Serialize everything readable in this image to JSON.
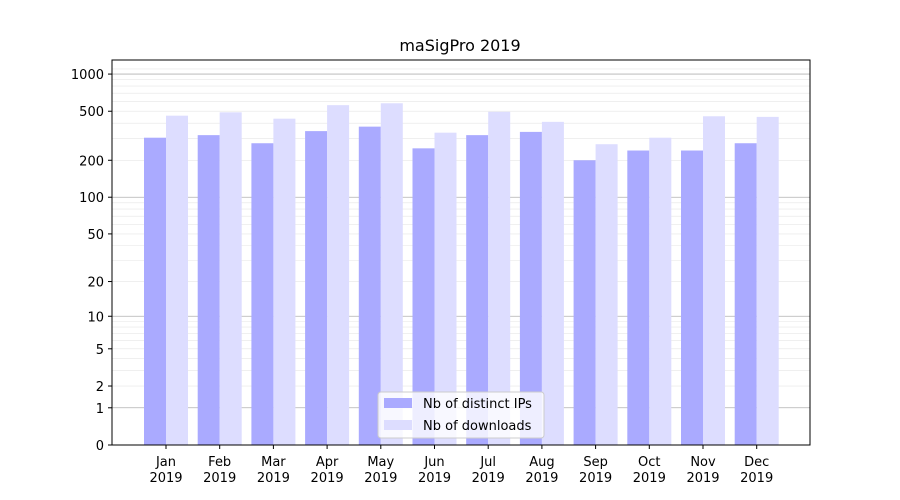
{
  "chart_data": {
    "type": "bar",
    "title": "maSigPro 2019",
    "xlabel": "",
    "ylabel": "",
    "yscale": "symlog",
    "ylim": [
      0,
      1300
    ],
    "grid": true,
    "legend_position": "bottom-center",
    "categories": [
      [
        "Jan",
        "2019"
      ],
      [
        "Feb",
        "2019"
      ],
      [
        "Mar",
        "2019"
      ],
      [
        "Apr",
        "2019"
      ],
      [
        "May",
        "2019"
      ],
      [
        "Jun",
        "2019"
      ],
      [
        "Jul",
        "2019"
      ],
      [
        "Aug",
        "2019"
      ],
      [
        "Sep",
        "2019"
      ],
      [
        "Oct",
        "2019"
      ],
      [
        "Nov",
        "2019"
      ],
      [
        "Dec",
        "2019"
      ]
    ],
    "yticks": [
      0,
      1,
      2,
      5,
      10,
      20,
      50,
      100,
      200,
      500,
      1000
    ],
    "series": [
      {
        "name": "Nb of distinct IPs",
        "color": "#aaaaff",
        "values": [
          305,
          320,
          275,
          345,
          375,
          250,
          320,
          340,
          200,
          240,
          240,
          275
        ]
      },
      {
        "name": "Nb of downloads",
        "color": "#ddddff",
        "values": [
          460,
          490,
          435,
          560,
          580,
          335,
          495,
          410,
          270,
          305,
          455,
          450
        ]
      }
    ]
  }
}
